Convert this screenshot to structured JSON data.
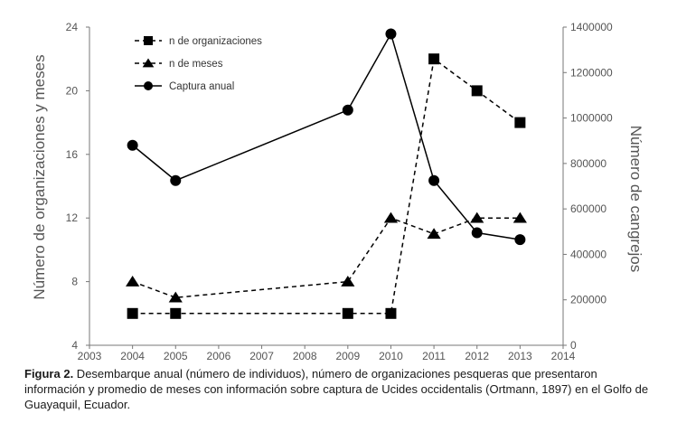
{
  "chart_data": {
    "type": "line",
    "x": [
      2004,
      2005,
      2009,
      2010,
      2011,
      2012,
      2013
    ],
    "xlim": [
      2003,
      2014
    ],
    "xticks": [
      "2003",
      "2004",
      "2005",
      "2006",
      "2007",
      "2008",
      "2009",
      "2010",
      "2011",
      "2012",
      "2013",
      "2014"
    ],
    "ylim_left": [
      4,
      24
    ],
    "yticks_left": [
      "4",
      "8",
      "12",
      "16",
      "20",
      "24"
    ],
    "ylim_right": [
      0,
      1400000
    ],
    "yticks_right": [
      "0",
      "200000",
      "400000",
      "600000",
      "800000",
      "1000000",
      "1200000",
      "1400000"
    ],
    "ylabel_left": "Número de organizaciones y meses",
    "ylabel_right": "Número de cangrejos",
    "xlabel": "",
    "grid": false,
    "legend_position": "top-left",
    "series": [
      {
        "name": "n de organizaciones",
        "axis": "left",
        "marker": "square",
        "line": "dashed",
        "values": [
          6,
          6,
          6,
          6,
          22,
          20,
          18
        ]
      },
      {
        "name": "n de meses",
        "axis": "left",
        "marker": "triangle",
        "line": "dashed",
        "values": [
          8,
          7,
          8,
          12,
          11,
          12,
          12
        ]
      },
      {
        "name": "Captura anual",
        "axis": "right",
        "marker": "circle",
        "line": "solid",
        "values": [
          880000,
          725000,
          1035000,
          1370000,
          725000,
          495000,
          465000
        ]
      }
    ]
  },
  "caption": {
    "label": "Figura 2.",
    "text": " Desembarque anual (número de individuos), número de organizaciones pesqueras que presentaron información y promedio de meses con información sobre captura de Ucides occidentalis (Ortmann, 1897) en el Golfo de Guayaquil, Ecuador."
  }
}
